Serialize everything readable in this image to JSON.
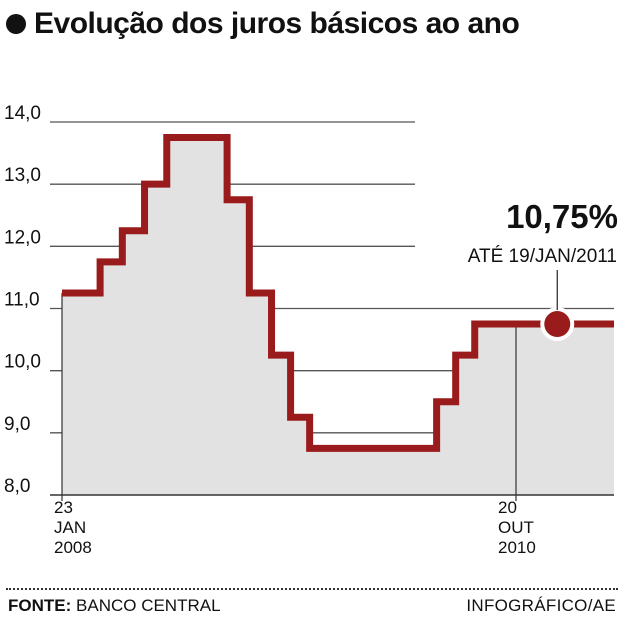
{
  "title": "Evolução dos juros básicos ao ano",
  "footer": {
    "source_label": "FONTE:",
    "source_value": "BANCO CENTRAL",
    "credit": "INFOGRÁFICO/AE"
  },
  "chart_data": {
    "type": "area",
    "title": "Evolução dos juros básicos ao ano",
    "ylim": [
      8.0,
      14.0
    ],
    "yticks": [
      "14,0",
      "13,0",
      "12,0",
      "11,0",
      "10,0",
      "9,0",
      "8,0"
    ],
    "x_labels": [
      {
        "lines": [
          "23",
          "JAN",
          "2008"
        ]
      },
      {
        "lines": [
          "20",
          "OUT",
          "2010"
        ]
      }
    ],
    "series": [
      {
        "x": [
          "2008-01-23",
          "2008-04-16",
          "2008-06-04",
          "2008-07-23",
          "2008-09-10",
          "2008-12-10",
          "2009-01-21",
          "2009-03-11",
          "2009-04-29",
          "2009-06-10",
          "2009-07-22",
          "2010-04-28",
          "2010-06-09",
          "2010-07-21",
          "2010-10-20",
          "2011-01-19"
        ],
        "values": [
          11.25,
          11.75,
          12.25,
          13.0,
          13.75,
          13.75,
          12.75,
          11.25,
          10.25,
          9.25,
          8.75,
          9.5,
          10.25,
          10.75,
          10.75,
          10.75
        ]
      }
    ],
    "annotation": {
      "value_label": "10,75%",
      "date_label": "ATÉ 19/JAN/2011"
    },
    "colors": {
      "line": "#9a1b1b",
      "fill": "#e2e2e2",
      "grid": "#555555"
    },
    "grid": true
  }
}
